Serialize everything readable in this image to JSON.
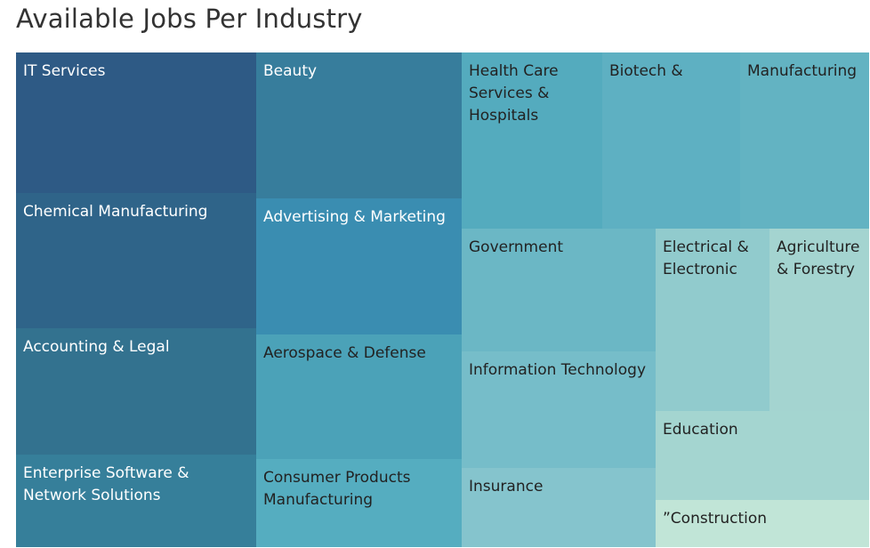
{
  "chart_data": {
    "type": "treemap",
    "title": "Available Jobs Per Industry",
    "categories": [
      "IT Services",
      "Chemical Manufacturing",
      "Accounting & Legal",
      "Enterprise Software &\nNetwork Solutions",
      "Beauty",
      "Advertising & Marketing",
      "Aerospace & Defense",
      "Consumer Products\nManufacturing",
      "Health Care\nServices &\nHospitals",
      "Biotech &",
      "Manufacturing",
      "Government",
      "Information Technology",
      "Insurance",
      "Electrical &\nElectronic",
      "Agriculture\n& Forestry",
      "Education",
      "”Construction"
    ],
    "colors": [
      "#2e5a85",
      "#2f6489",
      "#33728f",
      "#367f9a",
      "#377d9c",
      "#3a8db1",
      "#4ba2b8",
      "#55adc0",
      "#54abbe",
      "#5eb0c2",
      "#63b3c2",
      "#6bb7c5",
      "#76bdc9",
      "#85c4cd",
      "#91cbcd",
      "#a4d4d0",
      "#a4d5d0",
      "#c1e5d7"
    ],
    "text_colors": [
      "#ffffff",
      "#ffffff",
      "#ffffff",
      "#ffffff",
      "#ffffff",
      "#ffffff",
      "#222222",
      "#222222",
      "#222222",
      "#222222",
      "#222222",
      "#222222",
      "#222222",
      "#222222",
      "#222222",
      "#222222",
      "#222222",
      "#222222"
    ]
  }
}
